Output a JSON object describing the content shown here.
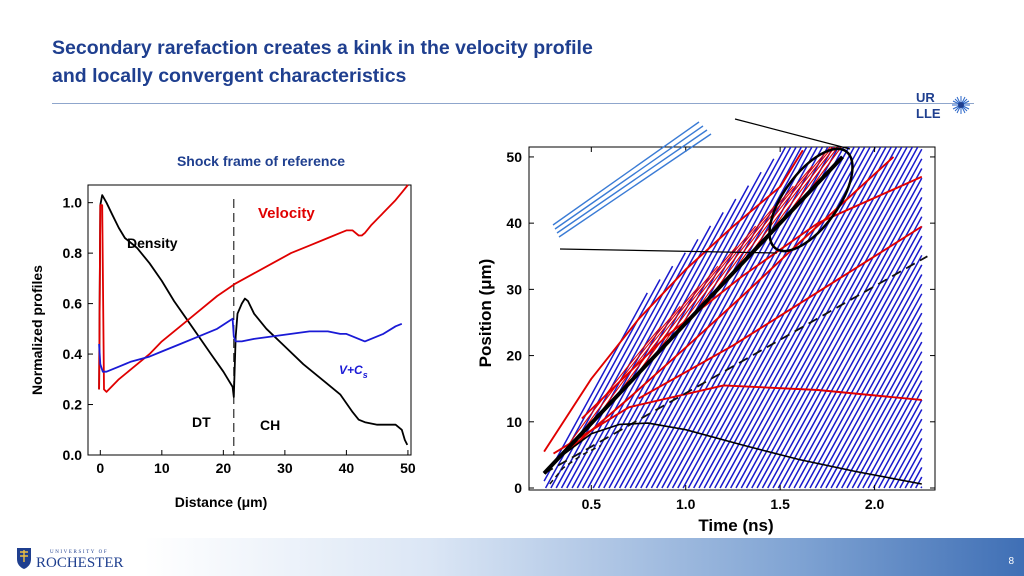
{
  "slide": {
    "title_line1": "Secondary rarefaction creates a kink in the velocity profile",
    "title_line2": "and locally convergent characteristics",
    "page_number": "8",
    "logo_top_text": [
      "UR",
      "LLE"
    ],
    "logo_bottom_text": [
      "UNIVERSITY OF",
      "ROCHESTER"
    ]
  },
  "colors": {
    "title": "#1f3f8f",
    "density": "#000000",
    "velocity": "#e00000",
    "sound": "#1a1ad6",
    "hatch": "#1a1acd",
    "guide_lines": "#3a7bd5"
  },
  "chart_data": [
    {
      "type": "line",
      "title": "Shock frame of reference",
      "xlabel": "Distance (μm)",
      "ylabel": "Normalized profiles",
      "xlim": [
        -2,
        50.5
      ],
      "ylim": [
        0,
        1.07
      ],
      "xticks": [
        0,
        10,
        20,
        30,
        40,
        50
      ],
      "yticks": [
        0.0,
        0.2,
        0.4,
        0.6,
        0.8,
        1.0
      ],
      "ytick_labels": [
        "0.0",
        "0.2",
        "0.4",
        "0.6",
        "0.8",
        "1.0"
      ],
      "grid": false,
      "interface_x": 21.7,
      "series": [
        {
          "name": "Density",
          "color": "#000000",
          "x": [
            -0.2,
            0,
            0.3,
            1,
            2,
            3,
            4,
            5,
            6,
            8,
            10,
            12,
            14,
            16,
            18,
            20,
            21.5,
            21.7,
            22,
            22.3,
            23,
            23.5,
            24,
            25,
            27,
            30,
            33,
            36,
            39,
            41,
            42,
            43,
            45,
            47,
            48,
            49,
            49.5,
            49.9
          ],
          "y": [
            0.26,
            0.99,
            1.03,
            1.0,
            0.95,
            0.9,
            0.86,
            0.84,
            0.82,
            0.76,
            0.69,
            0.61,
            0.54,
            0.47,
            0.4,
            0.33,
            0.27,
            0.23,
            0.47,
            0.56,
            0.6,
            0.62,
            0.61,
            0.56,
            0.5,
            0.43,
            0.36,
            0.3,
            0.24,
            0.17,
            0.14,
            0.13,
            0.12,
            0.12,
            0.12,
            0.1,
            0.06,
            0.04
          ]
        },
        {
          "name": "Velocity",
          "color": "#e00000",
          "x": [
            -0.2,
            0,
            0.3,
            0.6,
            1,
            3,
            5,
            8,
            10,
            13,
            16,
            19,
            22,
            25,
            28,
            31,
            34,
            37,
            39,
            40,
            41,
            42,
            42.5,
            43,
            44,
            46,
            48,
            49,
            50
          ],
          "y": [
            0.26,
            0.99,
            0.99,
            0.26,
            0.25,
            0.3,
            0.34,
            0.4,
            0.45,
            0.51,
            0.57,
            0.63,
            0.68,
            0.72,
            0.76,
            0.8,
            0.83,
            0.86,
            0.88,
            0.89,
            0.89,
            0.87,
            0.87,
            0.88,
            0.91,
            0.96,
            1.01,
            1.04,
            1.07
          ]
        },
        {
          "name": "V+Cs",
          "color": "#1a1ad6",
          "x": [
            -0.2,
            0,
            0.4,
            1,
            3,
            5,
            8,
            10,
            13,
            16,
            19,
            21.5,
            21.7,
            22,
            23,
            25,
            28,
            31,
            34,
            37,
            39,
            40,
            41,
            42,
            43,
            44,
            46,
            48,
            49
          ],
          "y": [
            0.44,
            0.36,
            0.33,
            0.33,
            0.35,
            0.37,
            0.39,
            0.41,
            0.44,
            0.47,
            0.5,
            0.54,
            0.47,
            0.45,
            0.45,
            0.46,
            0.47,
            0.48,
            0.49,
            0.49,
            0.48,
            0.48,
            0.47,
            0.46,
            0.45,
            0.46,
            0.48,
            0.51,
            0.52
          ]
        }
      ],
      "annotations": {
        "density": "Density",
        "velocity": "Velocity",
        "vcs": "V+C",
        "vcs_sub": "s",
        "dt": "DT",
        "ch": "CH"
      }
    },
    {
      "type": "line",
      "title": "",
      "xlabel": "Time (ns)",
      "ylabel": "Position (μm)",
      "xlim": [
        0.17,
        2.32
      ],
      "ylim": [
        -0.3,
        51.5
      ],
      "xticks": [
        0.5,
        1.0,
        1.5,
        2.0
      ],
      "xtick_labels": [
        "0.5",
        "1.0",
        "1.5",
        "2.0"
      ],
      "yticks": [
        0,
        10,
        20,
        30,
        40,
        50
      ],
      "ytick_labels": [
        "0",
        "10",
        "20",
        "30",
        "40",
        "50"
      ],
      "grid": false,
      "shock_front": {
        "x": [
          0.25,
          1.83
        ],
        "y": [
          2.2,
          50.0
        ]
      },
      "interface_dashed": {
        "x": [
          0.25,
          2.28
        ],
        "y": [
          2.2,
          35.0
        ]
      },
      "hatch_region": {
        "t_start": 0.25,
        "t_end": 2.25,
        "slope": 52,
        "spacing": 0.028
      },
      "red_characteristics": [
        {
          "x": [
            0.25,
            0.5,
            0.75,
            1.0,
            1.25,
            1.5,
            1.62
          ],
          "y": [
            5.5,
            16.5,
            25.5,
            33.0,
            39.5,
            45.5,
            51.0
          ]
        },
        {
          "x": [
            0.3,
            0.7,
            1.0,
            1.3,
            1.6,
            2.1
          ],
          "y": [
            3.8,
            13.6,
            21.2,
            29.0,
            37.0,
            50.0
          ]
        },
        {
          "x": [
            0.75,
            1.25,
            1.75,
            2.25
          ],
          "y": [
            13.5,
            21.5,
            30.5,
            39.5
          ]
        },
        {
          "x": [
            0.3,
            0.7,
            1.2,
            1.7,
            2.25
          ],
          "y": [
            5.2,
            12.2,
            15.5,
            14.8,
            13.3
          ]
        },
        {
          "x": [
            0.45,
            0.9,
            1.3,
            1.7,
            2.25
          ],
          "y": [
            10.5,
            23.0,
            32.0,
            40.0,
            47.0
          ]
        }
      ],
      "red_fan_count": 14,
      "black_curve": {
        "x": [
          0.25,
          0.35,
          0.5,
          0.65,
          0.8,
          1.0,
          1.3,
          1.6,
          1.9,
          2.25
        ],
        "y": [
          2.2,
          5.0,
          8.2,
          9.6,
          9.8,
          8.8,
          6.5,
          4.3,
          2.5,
          0.6
        ]
      },
      "small_dashed": {
        "x": [
          0.28,
          0.35,
          0.45,
          0.55
        ],
        "y": [
          0.6,
          3.0,
          5.0,
          6.4
        ]
      },
      "guide_lines_count": 4
    }
  ]
}
